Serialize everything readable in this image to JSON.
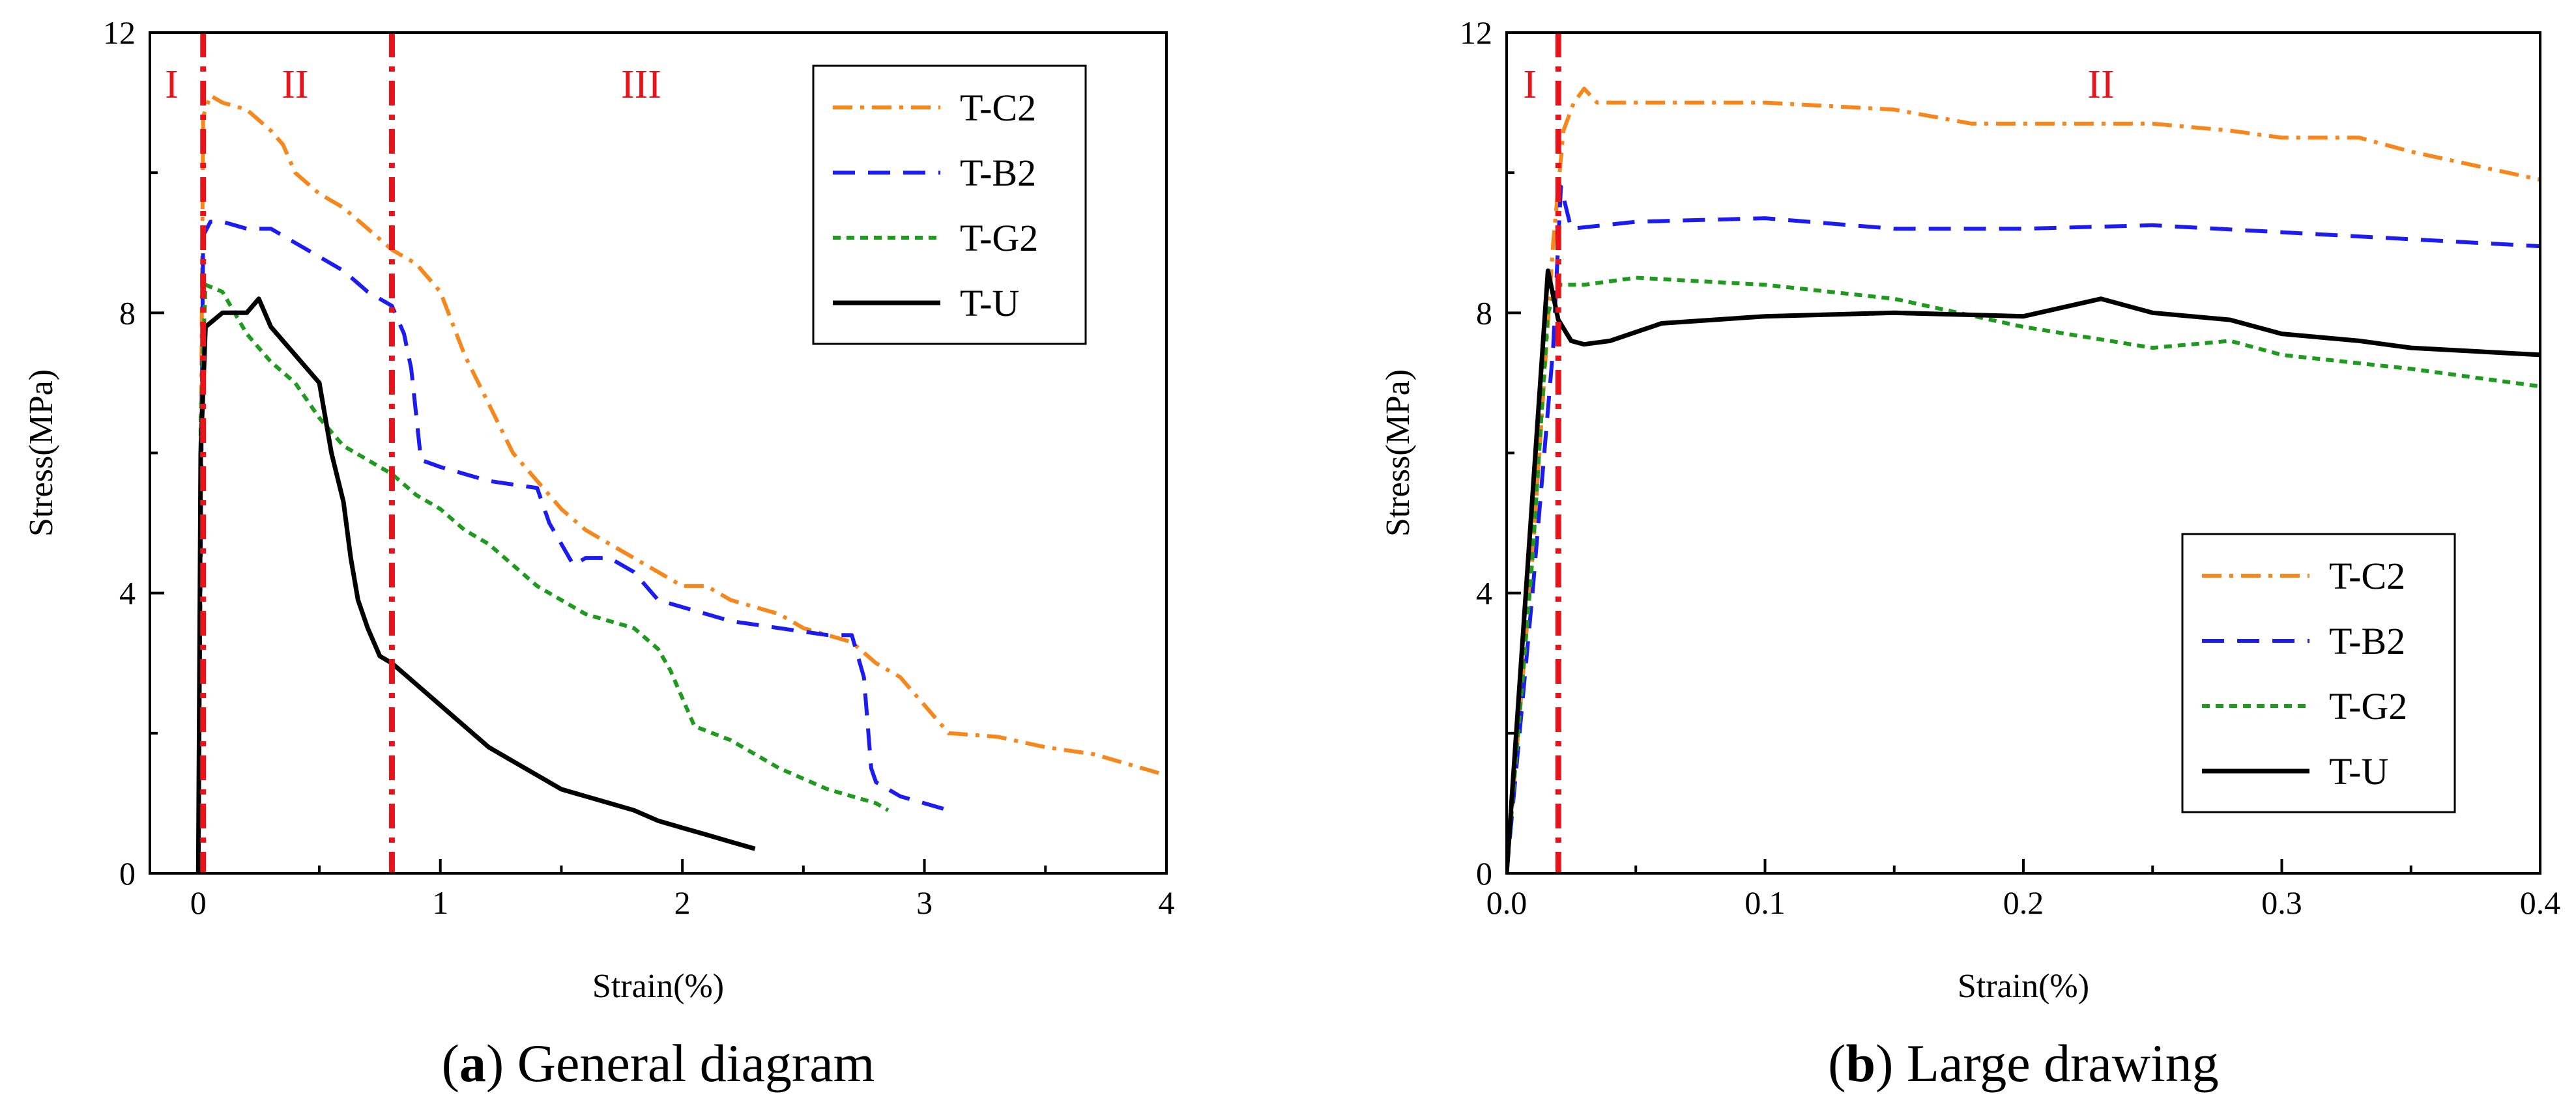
{
  "chart_data": [
    {
      "id": "a",
      "type": "line",
      "caption_letter": "a",
      "caption_text": ") General diagram",
      "caption_open": "(",
      "xlabel": "Strain(%)",
      "ylabel": "Stress(MPa)",
      "xlim": [
        -0.2,
        4
      ],
      "ylim": [
        0,
        12
      ],
      "xticks": [
        0,
        1,
        2,
        3,
        4
      ],
      "xtick_labels": [
        "0",
        "1",
        "2",
        "3",
        "4"
      ],
      "yticks": [
        0,
        4,
        8,
        12
      ],
      "ytick_labels": [
        "0",
        "4",
        "8",
        "12"
      ],
      "legend_position": "top-right",
      "vlines": [
        0.02,
        0.8
      ],
      "regions": [
        {
          "label": "I",
          "x": -0.11
        },
        {
          "label": "II",
          "x": 0.4
        },
        {
          "label": "III",
          "x": 1.83
        }
      ],
      "series": [
        {
          "name": "T-C2",
          "color": "#f7861b",
          "dash": "dashdot",
          "x": [
            0,
            0.02,
            0.05,
            0.1,
            0.2,
            0.3,
            0.35,
            0.4,
            0.5,
            0.6,
            0.7,
            0.8,
            0.9,
            1.0,
            1.1,
            1.2,
            1.3,
            1.4,
            1.5,
            1.6,
            1.7,
            1.8,
            1.9,
            2.0,
            2.1,
            2.2,
            2.3,
            2.4,
            2.5,
            2.6,
            2.7,
            2.8,
            2.9,
            3.0,
            3.1,
            3.3,
            3.5,
            3.7,
            3.9,
            4.0
          ],
          "y": [
            0,
            10.8,
            11.1,
            11.0,
            10.9,
            10.6,
            10.4,
            10.0,
            9.7,
            9.5,
            9.2,
            8.9,
            8.7,
            8.3,
            7.4,
            6.7,
            6.0,
            5.6,
            5.2,
            4.9,
            4.7,
            4.5,
            4.3,
            4.1,
            4.1,
            3.9,
            3.8,
            3.7,
            3.5,
            3.4,
            3.3,
            3.0,
            2.8,
            2.4,
            2.0,
            1.95,
            1.8,
            1.7,
            1.5,
            1.4
          ]
        },
        {
          "name": "T-B2",
          "color": "#1b1bf2",
          "dash": "dash",
          "x": [
            0,
            0.02,
            0.05,
            0.1,
            0.2,
            0.3,
            0.4,
            0.5,
            0.6,
            0.7,
            0.8,
            0.85,
            0.88,
            0.92,
            1.0,
            1.2,
            1.4,
            1.45,
            1.55,
            1.6,
            1.7,
            1.8,
            1.9,
            2.0,
            2.2,
            2.4,
            2.6,
            2.7,
            2.75,
            2.78,
            2.8,
            2.9,
            3.1
          ],
          "y": [
            0,
            9.1,
            9.3,
            9.3,
            9.2,
            9.2,
            9.0,
            8.8,
            8.6,
            8.3,
            8.1,
            7.7,
            7.2,
            5.9,
            5.8,
            5.6,
            5.5,
            5.0,
            4.4,
            4.5,
            4.5,
            4.3,
            3.9,
            3.8,
            3.6,
            3.5,
            3.4,
            3.4,
            2.8,
            1.5,
            1.3,
            1.1,
            0.9
          ]
        },
        {
          "name": "T-G2",
          "color": "#1e9b1e",
          "dash": "dot",
          "x": [
            0,
            0.01,
            0.03,
            0.1,
            0.2,
            0.3,
            0.4,
            0.5,
            0.6,
            0.7,
            0.8,
            0.9,
            1.0,
            1.1,
            1.2,
            1.3,
            1.4,
            1.5,
            1.6,
            1.7,
            1.8,
            1.9,
            1.95,
            2.0,
            2.05,
            2.2,
            2.4,
            2.6,
            2.8,
            2.85
          ],
          "y": [
            0,
            6.5,
            8.4,
            8.3,
            7.7,
            7.3,
            7.0,
            6.5,
            6.1,
            5.9,
            5.7,
            5.4,
            5.2,
            4.9,
            4.7,
            4.4,
            4.1,
            3.9,
            3.7,
            3.6,
            3.5,
            3.2,
            2.9,
            2.5,
            2.1,
            1.9,
            1.5,
            1.2,
            1.0,
            0.9
          ]
        },
        {
          "name": "T-U",
          "color": "#000000",
          "dash": "solid",
          "x": [
            0,
            0.01,
            0.03,
            0.1,
            0.2,
            0.25,
            0.3,
            0.4,
            0.5,
            0.55,
            0.6,
            0.63,
            0.66,
            0.7,
            0.75,
            0.8,
            0.9,
            1.0,
            1.1,
            1.2,
            1.3,
            1.4,
            1.5,
            1.6,
            1.7,
            1.8,
            1.9,
            2.0,
            2.1,
            2.2,
            2.3
          ],
          "y": [
            0,
            6.0,
            7.8,
            8.0,
            8.0,
            8.2,
            7.8,
            7.4,
            7.0,
            6.0,
            5.3,
            4.5,
            3.9,
            3.5,
            3.1,
            3.0,
            2.7,
            2.4,
            2.1,
            1.8,
            1.6,
            1.4,
            1.2,
            1.1,
            1.0,
            0.9,
            0.75,
            0.65,
            0.55,
            0.45,
            0.35
          ]
        }
      ]
    },
    {
      "id": "b",
      "type": "line",
      "caption_letter": "b",
      "caption_text": ") Large drawing",
      "caption_open": "(",
      "xlabel": "Strain(%)",
      "ylabel": "Stress(MPa)",
      "xlim": [
        0,
        0.4
      ],
      "ylim": [
        0,
        12
      ],
      "xticks": [
        0,
        0.1,
        0.2,
        0.3,
        0.4
      ],
      "xtick_labels": [
        "0.0",
        "0.1",
        "0.2",
        "0.3",
        "0.4"
      ],
      "yticks": [
        0,
        4,
        8,
        12
      ],
      "ytick_labels": [
        "0",
        "4",
        "8",
        "12"
      ],
      "legend_position": "bottom-right",
      "vlines": [
        0.02
      ],
      "regions": [
        {
          "label": "I",
          "x": 0.009
        },
        {
          "label": "II",
          "x": 0.23
        }
      ],
      "series": [
        {
          "name": "T-C2",
          "color": "#f7861b",
          "dash": "dashdot",
          "x": [
            0,
            0.01,
            0.018,
            0.022,
            0.026,
            0.03,
            0.035,
            0.05,
            0.1,
            0.15,
            0.18,
            0.2,
            0.25,
            0.28,
            0.3,
            0.33,
            0.35,
            0.4
          ],
          "y": [
            0,
            4.5,
            9.0,
            10.6,
            11.0,
            11.2,
            11.0,
            11.0,
            11.0,
            10.9,
            10.7,
            10.7,
            10.7,
            10.6,
            10.5,
            10.5,
            10.3,
            9.9
          ]
        },
        {
          "name": "T-B2",
          "color": "#1b1bf2",
          "dash": "dash",
          "x": [
            0,
            0.01,
            0.018,
            0.021,
            0.025,
            0.05,
            0.1,
            0.15,
            0.2,
            0.25,
            0.3,
            0.35,
            0.4
          ],
          "y": [
            0,
            4.0,
            7.5,
            9.8,
            9.2,
            9.3,
            9.35,
            9.2,
            9.2,
            9.25,
            9.15,
            9.05,
            8.95
          ]
        },
        {
          "name": "T-G2",
          "color": "#1e9b1e",
          "dash": "dot",
          "x": [
            0,
            0.01,
            0.016,
            0.02,
            0.03,
            0.05,
            0.1,
            0.15,
            0.2,
            0.25,
            0.28,
            0.3,
            0.35,
            0.4
          ],
          "y": [
            0,
            4.5,
            8.0,
            8.4,
            8.4,
            8.5,
            8.4,
            8.2,
            7.8,
            7.5,
            7.6,
            7.4,
            7.2,
            6.95
          ]
        },
        {
          "name": "T-U",
          "color": "#000000",
          "dash": "solid",
          "x": [
            0,
            0.008,
            0.016,
            0.02,
            0.025,
            0.03,
            0.04,
            0.06,
            0.1,
            0.15,
            0.2,
            0.23,
            0.25,
            0.28,
            0.3,
            0.33,
            0.35,
            0.4
          ],
          "y": [
            0,
            4.3,
            8.6,
            7.9,
            7.6,
            7.55,
            7.6,
            7.85,
            7.95,
            8.0,
            7.95,
            8.2,
            8.0,
            7.9,
            7.7,
            7.6,
            7.5,
            7.4
          ]
        }
      ]
    }
  ]
}
